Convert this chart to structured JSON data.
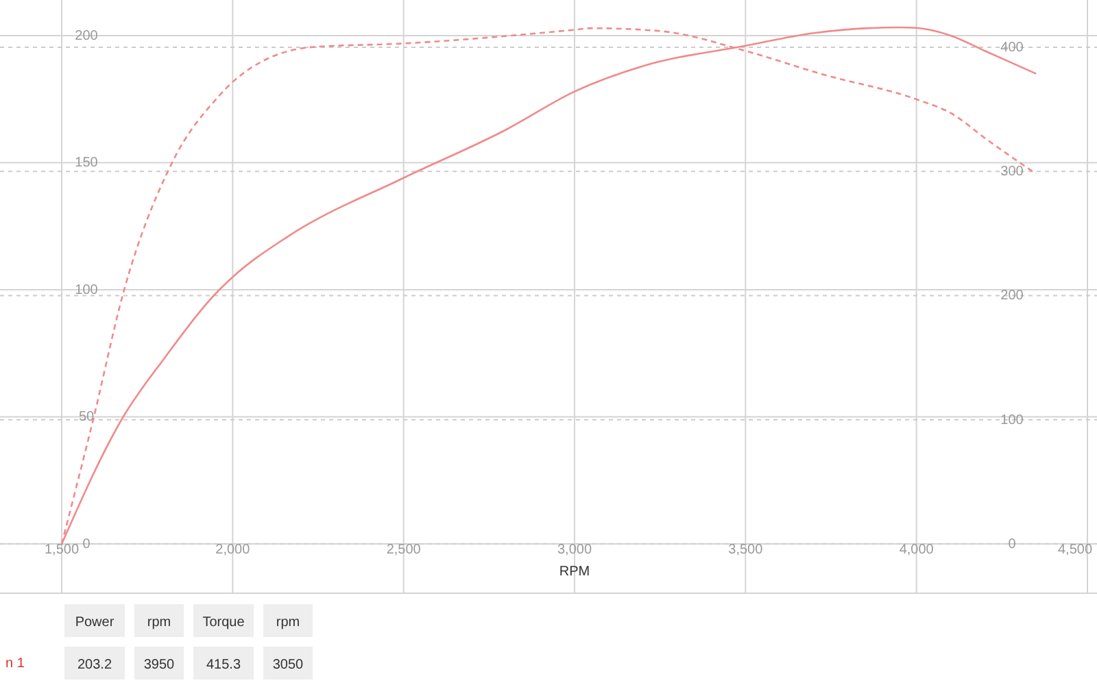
{
  "chart_data": {
    "type": "line",
    "xlabel": "RPM",
    "xlim": [
      1500,
      4500
    ],
    "xticks": [
      {
        "value": 1500,
        "label": "1,500"
      },
      {
        "value": 2000,
        "label": "2,000"
      },
      {
        "value": 2500,
        "label": "2,500"
      },
      {
        "value": 3000,
        "label": "3,000"
      },
      {
        "value": 3500,
        "label": "3,500"
      },
      {
        "value": 4000,
        "label": "4,000"
      },
      {
        "value": 4500,
        "label": "4,500"
      }
    ],
    "ylim": [
      0,
      214
    ],
    "yticks": [
      0,
      50,
      100,
      150,
      200
    ],
    "y2lim": [
      0,
      438
    ],
    "y2ticks": [
      0,
      100,
      200,
      300,
      400
    ],
    "grid": true,
    "series": [
      {
        "color": "#f08a8a",
        "line_style": "solid",
        "axis": "y",
        "x": [
          1500,
          1680,
          1800,
          1961,
          2000,
          2162,
          2500,
          2800,
          3000,
          3200,
          3500,
          3700,
          3950,
          4000,
          4100,
          4200,
          4350
        ],
        "values": [
          0,
          50,
          73,
          100,
          105,
          121,
          144,
          163,
          178,
          188,
          196,
          201,
          203.2,
          203,
          200,
          194,
          185
        ]
      },
      {
        "color": "#f08a8a",
        "line_style": "dashed",
        "axis": "y2",
        "x": [
          1500,
          1592,
          1681,
          1821,
          1961,
          2000,
          2230,
          2500,
          3000,
          3050,
          3250,
          3500,
          3727,
          4000,
          4100,
          4209,
          4350
        ],
        "values": [
          0,
          100,
          203,
          306,
          361,
          372,
          400,
          403,
          414,
          415.3,
          413,
          397,
          378,
          358,
          347,
          325,
          298
        ]
      }
    ],
    "annotations": [
      "Power",
      "rpm",
      "Torque",
      "rpm",
      "n 1",
      "203.2",
      "3950",
      "415.3",
      "3050"
    ]
  }
}
